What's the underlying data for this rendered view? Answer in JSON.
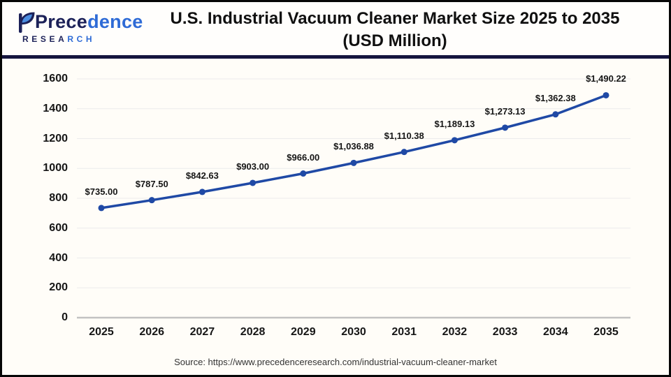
{
  "page": {
    "background": "#fffdf8",
    "border_color": "#060606",
    "divider_color": "#15153f"
  },
  "logo": {
    "brand_dark": "Prece",
    "brand_light": "dence",
    "sub_dark": "RESEA",
    "sub_light": "RCH",
    "navy": "#1c2158",
    "blue": "#2e6bd6",
    "accent": "#4b8de0"
  },
  "header": {
    "title_line1": "U.S. Industrial Vacuum Cleaner Market Size 2025 to 2035",
    "title_line2": "(USD Million)"
  },
  "source": {
    "text": "Source: https://www.precedenceresearch.com/industrial-vacuum-cleaner-market"
  },
  "chart_data": {
    "type": "line",
    "title": "U.S. Industrial Vacuum Cleaner Market Size 2025 to 2035 (USD Million)",
    "categories": [
      "2025",
      "2026",
      "2027",
      "2028",
      "2029",
      "2030",
      "2031",
      "2032",
      "2033",
      "2034",
      "2035"
    ],
    "values": [
      735.0,
      787.5,
      842.63,
      903.0,
      966.0,
      1036.88,
      1110.38,
      1189.13,
      1273.13,
      1362.38,
      1490.22
    ],
    "point_labels": [
      "$735.00",
      "$787.50",
      "$842.63",
      "$903.00",
      "$966.00",
      "$1,036.88",
      "$1,110.38",
      "$1,189.13",
      "$1,273.13",
      "$1,362.38",
      "$1,490.22"
    ],
    "xlabel": "",
    "ylabel": "",
    "ylim": [
      0,
      1600
    ],
    "yticks": [
      0,
      200,
      400,
      600,
      800,
      1000,
      1200,
      1400,
      1600
    ],
    "grid": true,
    "legend_position": "none",
    "line_color": "#1f49a5",
    "point_color": "#1f49a5",
    "grid_color": "#ececec",
    "axis_color": "#c2c2c2",
    "label_color": "#161616"
  }
}
